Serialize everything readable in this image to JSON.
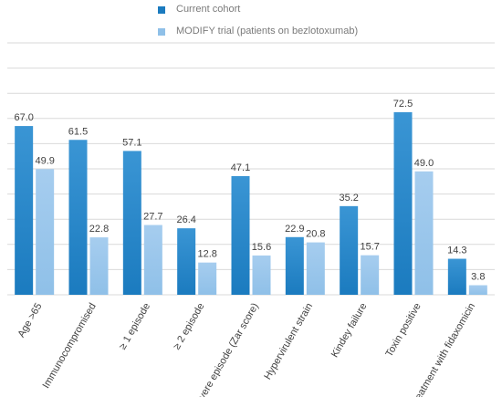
{
  "chart_data": {
    "type": "bar",
    "categories": [
      "Age >65",
      "Immunocompromised",
      "≥ 1 episode",
      "≥ 2 episode",
      "Severe episode (Zar score)",
      "Hypervirulent strain",
      "Kindey failure",
      "Toxin positive",
      "Treatment with fidaxomicin"
    ],
    "series": [
      {
        "name": "Current cohort",
        "color": "#1b7bbf",
        "values": [
          67.0,
          61.5,
          57.1,
          26.4,
          47.1,
          22.9,
          35.2,
          72.5,
          14.3
        ],
        "labels": [
          "67.0",
          "61.5",
          "57.1",
          "26.4",
          "47.1",
          "22.9",
          "35.2",
          "72.5",
          "14.3"
        ]
      },
      {
        "name": "MODIFY trial (patients on bezlotoxumab)",
        "color": "#8fc0e8",
        "values": [
          49.9,
          22.8,
          27.7,
          12.8,
          15.6,
          20.8,
          15.7,
          49.0,
          3.8
        ],
        "labels": [
          "49.9",
          "22.8",
          "27.7",
          "12.8",
          "15.6",
          "20.8",
          "15.7",
          "49.0",
          "3.8"
        ]
      }
    ],
    "ylim": [
      0,
      100
    ],
    "ygrid_step": 10,
    "grid": true,
    "legend_position": "top",
    "title": "",
    "xlabel": "",
    "ylabel": ""
  }
}
